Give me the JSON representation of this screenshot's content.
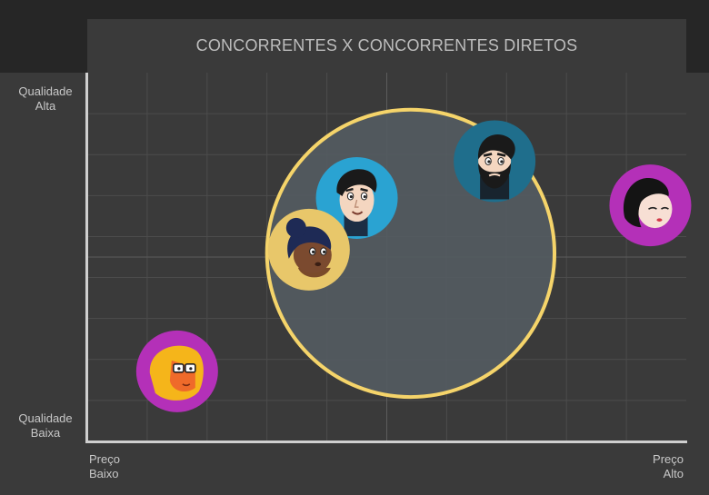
{
  "chart_data": {
    "type": "scatter",
    "title": "CONCORRENTES X CONCORRENTES DIRETOS",
    "y_axis": {
      "top_label": [
        "Qualidade",
        "Alta"
      ],
      "bottom_label": [
        "Qualidade",
        "Baixa"
      ]
    },
    "x_axis": {
      "left_label": [
        "Preço",
        "Baixo"
      ],
      "right_label": [
        "Preço",
        "Alto"
      ]
    },
    "grid": true,
    "colors": {
      "background": "#3a3a3a",
      "topbar": "#262626",
      "axis": "#cfcfcf",
      "grid": "#4c4c4c",
      "highlight_fill": "#545b61",
      "highlight_stroke": "#f5d46a"
    },
    "highlight": {
      "cx": 0.54,
      "cy": 0.51,
      "r": 0.24
    },
    "points": [
      {
        "x": 0.45,
        "y": 0.66,
        "color": "#2aa3d2",
        "icon": "man-avatar-icon"
      },
      {
        "x": 0.68,
        "y": 0.76,
        "color": "#1f6e8c",
        "icon": "bearded-man-avatar-icon"
      },
      {
        "x": 0.94,
        "y": 0.64,
        "color": "#b430b8",
        "icon": "woman-black-hair-avatar-icon"
      },
      {
        "x": 0.37,
        "y": 0.52,
        "color": "#e8c76a",
        "icon": "woman-bun-avatar-icon"
      },
      {
        "x": 0.15,
        "y": 0.19,
        "color": "#b430b8",
        "icon": "woman-glasses-avatar-icon"
      }
    ]
  }
}
